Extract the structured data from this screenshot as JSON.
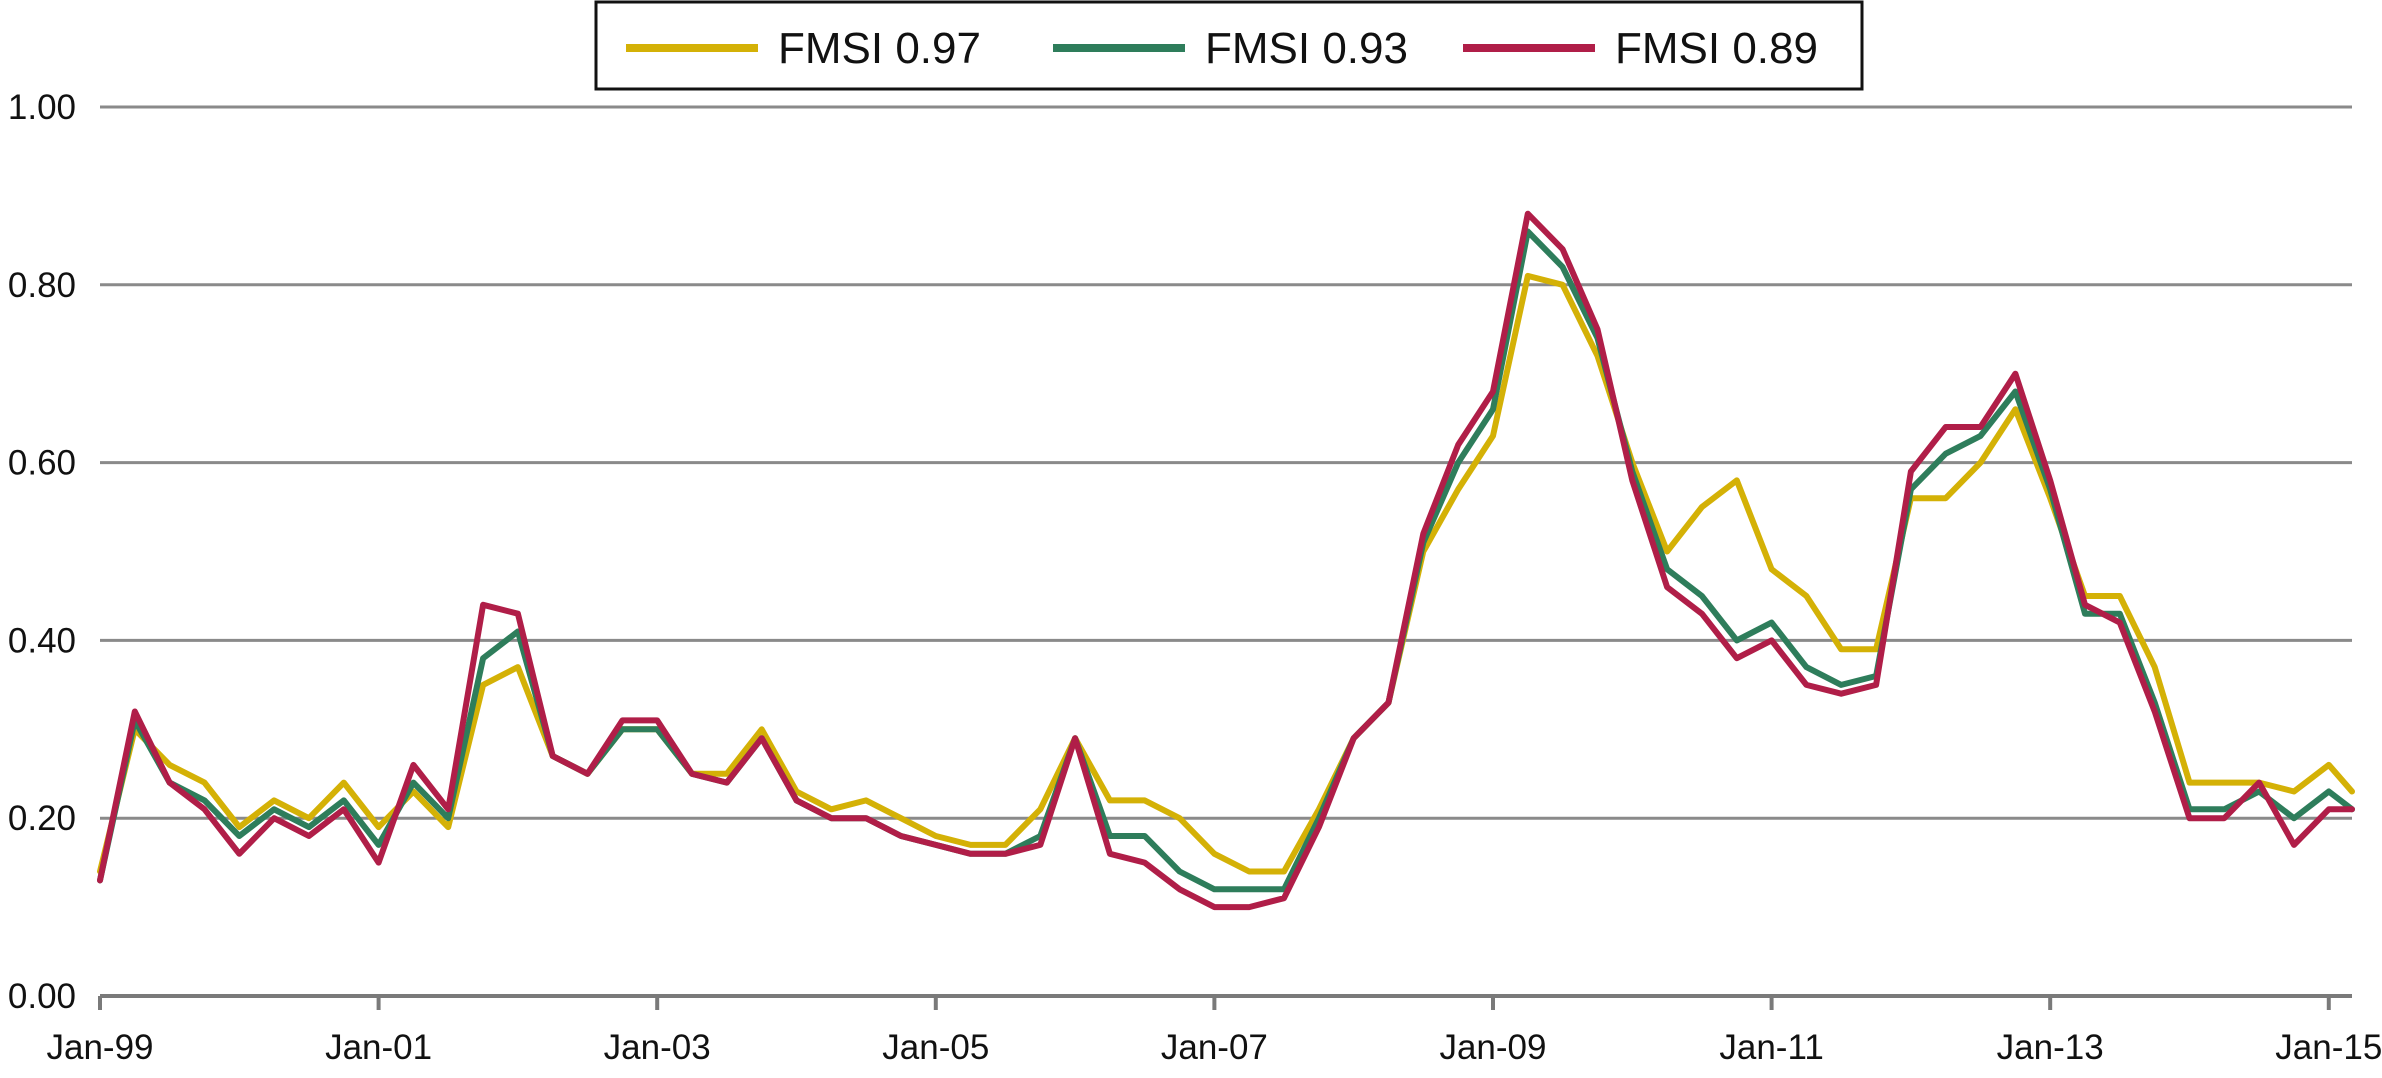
{
  "chart_data": {
    "type": "line",
    "title": "",
    "xlabel": "",
    "ylabel": "",
    "ylim": [
      0,
      1
    ],
    "yticks": [
      "0.00",
      "0.20",
      "0.40",
      "0.60",
      "0.80",
      "1.00"
    ],
    "xticks": [
      "Jan-99",
      "Jan-01",
      "Jan-03",
      "Jan-05",
      "Jan-07",
      "Jan-09",
      "Jan-11",
      "Jan-13",
      "Jan-15"
    ],
    "x_range": [
      "1999-01",
      "2015-03"
    ],
    "grid": "horizontal",
    "legend_position": "top-center",
    "x": [
      "1999-01",
      "1999-04",
      "1999-07",
      "1999-10",
      "2000-01",
      "2000-04",
      "2000-07",
      "2000-10",
      "2001-01",
      "2001-04",
      "2001-07",
      "2001-10",
      "2002-01",
      "2002-04",
      "2002-07",
      "2002-10",
      "2003-01",
      "2003-04",
      "2003-07",
      "2003-10",
      "2004-01",
      "2004-04",
      "2004-07",
      "2004-10",
      "2005-01",
      "2005-04",
      "2005-07",
      "2005-10",
      "2006-01",
      "2006-04",
      "2006-07",
      "2006-10",
      "2007-01",
      "2007-04",
      "2007-07",
      "2007-10",
      "2008-01",
      "2008-04",
      "2008-07",
      "2008-10",
      "2009-01",
      "2009-04",
      "2009-07",
      "2009-10",
      "2010-01",
      "2010-04",
      "2010-07",
      "2010-10",
      "2011-01",
      "2011-04",
      "2011-07",
      "2011-10",
      "2012-01",
      "2012-04",
      "2012-07",
      "2012-10",
      "2013-01",
      "2013-04",
      "2013-07",
      "2013-10",
      "2014-01",
      "2014-04",
      "2014-07",
      "2014-10",
      "2015-01",
      "2015-03"
    ],
    "series": [
      {
        "name": "FMSI 0.97",
        "color": "#D4B106",
        "values": [
          0.14,
          0.3,
          0.26,
          0.24,
          0.19,
          0.22,
          0.2,
          0.24,
          0.19,
          0.23,
          0.19,
          0.35,
          0.37,
          0.27,
          0.25,
          0.3,
          0.3,
          0.25,
          0.25,
          0.3,
          0.23,
          0.21,
          0.22,
          0.2,
          0.18,
          0.17,
          0.17,
          0.21,
          0.29,
          0.22,
          0.22,
          0.2,
          0.16,
          0.14,
          0.14,
          0.21,
          0.29,
          0.33,
          0.5,
          0.57,
          0.63,
          0.81,
          0.8,
          0.72,
          0.6,
          0.5,
          0.55,
          0.58,
          0.48,
          0.45,
          0.39,
          0.39,
          0.56,
          0.56,
          0.6,
          0.66,
          0.56,
          0.45,
          0.45,
          0.37,
          0.24,
          0.24,
          0.24,
          0.23,
          0.26,
          0.23
        ]
      },
      {
        "name": "FMSI 0.93",
        "color": "#2E7D5B",
        "values": [
          0.13,
          0.31,
          0.24,
          0.22,
          0.18,
          0.21,
          0.19,
          0.22,
          0.17,
          0.24,
          0.2,
          0.38,
          0.41,
          0.27,
          0.25,
          0.3,
          0.3,
          0.25,
          0.24,
          0.29,
          0.22,
          0.2,
          0.2,
          0.18,
          0.17,
          0.16,
          0.16,
          0.18,
          0.29,
          0.18,
          0.18,
          0.14,
          0.12,
          0.12,
          0.12,
          0.2,
          0.29,
          0.33,
          0.51,
          0.6,
          0.66,
          0.86,
          0.82,
          0.74,
          0.59,
          0.48,
          0.45,
          0.4,
          0.42,
          0.37,
          0.35,
          0.36,
          0.57,
          0.61,
          0.63,
          0.68,
          0.57,
          0.43,
          0.43,
          0.33,
          0.21,
          0.21,
          0.23,
          0.2,
          0.23,
          0.21
        ]
      },
      {
        "name": "FMSI 0.89",
        "color": "#B01E48",
        "values": [
          0.13,
          0.32,
          0.24,
          0.21,
          0.16,
          0.2,
          0.18,
          0.21,
          0.15,
          0.26,
          0.21,
          0.44,
          0.43,
          0.27,
          0.25,
          0.31,
          0.31,
          0.25,
          0.24,
          0.29,
          0.22,
          0.2,
          0.2,
          0.18,
          0.17,
          0.16,
          0.16,
          0.17,
          0.29,
          0.16,
          0.15,
          0.12,
          0.1,
          0.1,
          0.11,
          0.19,
          0.29,
          0.33,
          0.52,
          0.62,
          0.68,
          0.88,
          0.84,
          0.75,
          0.58,
          0.46,
          0.43,
          0.38,
          0.4,
          0.35,
          0.34,
          0.35,
          0.59,
          0.64,
          0.64,
          0.7,
          0.58,
          0.44,
          0.42,
          0.32,
          0.2,
          0.2,
          0.24,
          0.17,
          0.21,
          0.21
        ]
      }
    ]
  }
}
